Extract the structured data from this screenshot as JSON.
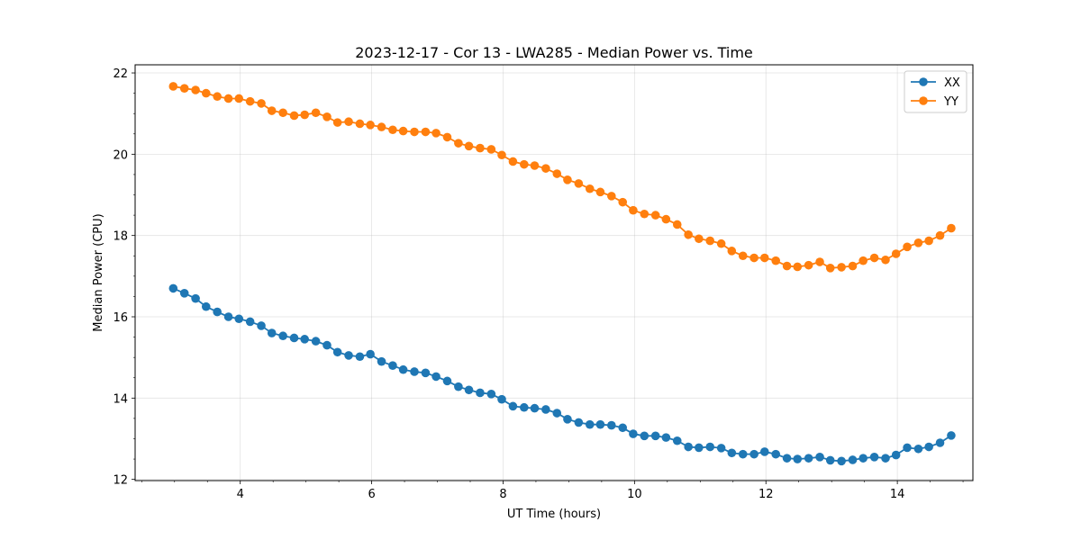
{
  "chart_data": {
    "type": "line",
    "title": "2023-12-17 - Cor 13 - LWA285 - Median Power vs. Time",
    "xlabel": "UT Time (hours)",
    "ylabel": "Median Power (CPU)",
    "xlim": [
      2.4,
      15.15
    ],
    "ylim": [
      11.97,
      22.2
    ],
    "xticks": [
      4,
      6,
      8,
      10,
      12,
      14
    ],
    "xtick_labels": [
      "4",
      "6",
      "8",
      "10",
      "12",
      "14"
    ],
    "yticks": [
      12,
      14,
      16,
      18,
      20,
      22
    ],
    "ytick_labels": [
      "12",
      "14",
      "16",
      "18",
      "20",
      "22"
    ],
    "grid": true,
    "legend_position": "top-right",
    "x": [
      2.98,
      3.15,
      3.32,
      3.48,
      3.65,
      3.82,
      3.98,
      4.15,
      4.32,
      4.48,
      4.65,
      4.82,
      4.98,
      5.15,
      5.32,
      5.48,
      5.65,
      5.82,
      5.98,
      6.15,
      6.32,
      6.48,
      6.65,
      6.82,
      6.98,
      7.15,
      7.32,
      7.48,
      7.65,
      7.82,
      7.98,
      8.15,
      8.32,
      8.48,
      8.65,
      8.82,
      8.98,
      9.15,
      9.32,
      9.48,
      9.65,
      9.82,
      9.98,
      10.15,
      10.32,
      10.48,
      10.65,
      10.82,
      10.98,
      11.15,
      11.32,
      11.48,
      11.65,
      11.82,
      11.98,
      12.15,
      12.32,
      12.48,
      12.65,
      12.82,
      12.98,
      13.15,
      13.32,
      13.48,
      13.65,
      13.82,
      13.98,
      14.15,
      14.32,
      14.48,
      14.65,
      14.82
    ],
    "series": [
      {
        "name": "XX",
        "color": "#1f77b4",
        "values": [
          16.7,
          16.58,
          16.45,
          16.25,
          16.12,
          16.0,
          15.95,
          15.88,
          15.78,
          15.6,
          15.53,
          15.48,
          15.45,
          15.4,
          15.3,
          15.13,
          15.05,
          15.02,
          15.08,
          14.9,
          14.8,
          14.7,
          14.65,
          14.62,
          14.53,
          14.42,
          14.28,
          14.2,
          14.13,
          14.1,
          13.97,
          13.8,
          13.77,
          13.75,
          13.72,
          13.63,
          13.48,
          13.4,
          13.35,
          13.35,
          13.33,
          13.27,
          13.12,
          13.07,
          13.07,
          13.03,
          12.95,
          12.8,
          12.78,
          12.8,
          12.77,
          12.65,
          12.62,
          12.62,
          12.68,
          12.62,
          12.52,
          12.5,
          12.52,
          12.55,
          12.47,
          12.45,
          12.48,
          12.52,
          12.55,
          12.52,
          12.6,
          12.78,
          12.75,
          12.8,
          12.9,
          13.08
        ]
      },
      {
        "name": "YY",
        "color": "#ff7f0e",
        "values": [
          21.67,
          21.62,
          21.58,
          21.5,
          21.42,
          21.37,
          21.37,
          21.3,
          21.25,
          21.07,
          21.02,
          20.95,
          20.97,
          21.02,
          20.92,
          20.78,
          20.8,
          20.75,
          20.72,
          20.67,
          20.6,
          20.57,
          20.55,
          20.55,
          20.52,
          20.42,
          20.27,
          20.2,
          20.15,
          20.12,
          19.98,
          19.82,
          19.75,
          19.72,
          19.65,
          19.52,
          19.37,
          19.28,
          19.15,
          19.07,
          18.97,
          18.82,
          18.62,
          18.53,
          18.5,
          18.4,
          18.27,
          18.02,
          17.92,
          17.87,
          17.8,
          17.62,
          17.5,
          17.45,
          17.45,
          17.38,
          17.25,
          17.23,
          17.27,
          17.35,
          17.2,
          17.22,
          17.25,
          17.38,
          17.45,
          17.4,
          17.55,
          17.72,
          17.82,
          17.87,
          18.0,
          18.18
        ]
      }
    ]
  }
}
